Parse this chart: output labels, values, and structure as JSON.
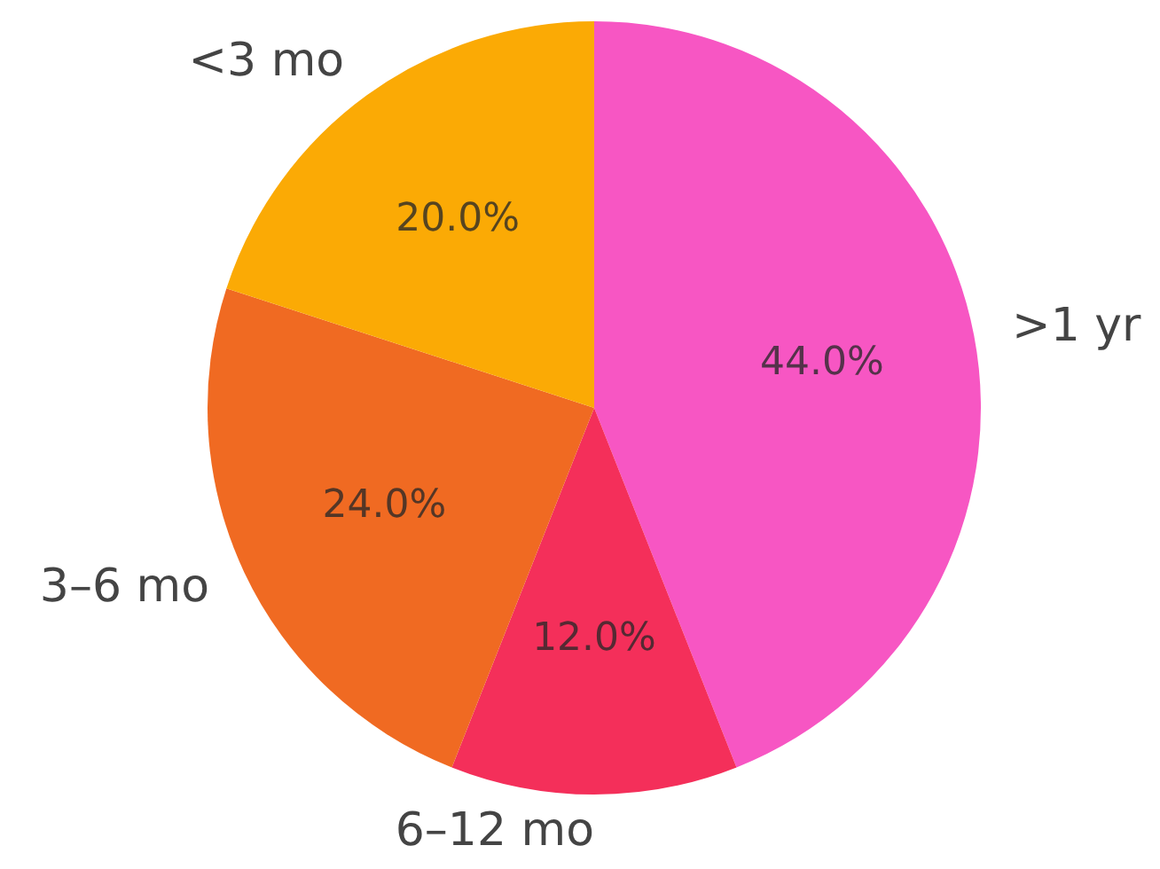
{
  "chart_data": {
    "type": "pie",
    "categories": [
      ">1 yr",
      "6–12 mo",
      "3–6 mo",
      "<3 mo"
    ],
    "values": [
      44,
      12,
      24,
      20
    ],
    "colors": [
      "#f756c3",
      "#f42f5a",
      "#f06a22",
      "#fbaa05"
    ],
    "value_labels": [
      "44.0%",
      "12.0%",
      "24.0%",
      "20.0%"
    ]
  }
}
